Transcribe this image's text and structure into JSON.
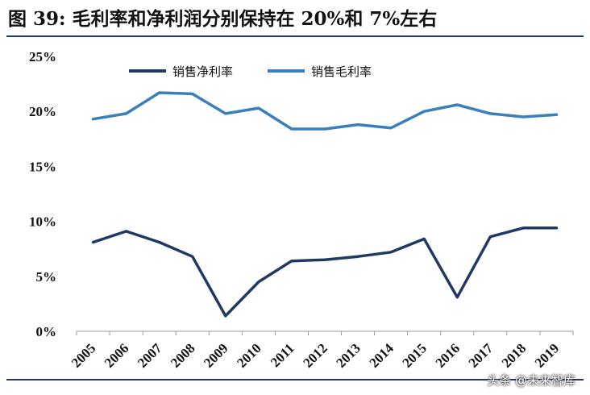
{
  "title": "图 39: 毛利率和净利润分别保持在 20%和 7%左右",
  "watermark": "头条 @未来智库",
  "colors": {
    "net_margin": "#1f3864",
    "gross_margin": "#3a7ebd",
    "title_rule": "#1f3864"
  },
  "chart_data": {
    "type": "line",
    "title": "图 39: 毛利率和净利润分别保持在 20%和 7%左右",
    "xlabel": "",
    "ylabel": "",
    "x": [
      "2005",
      "2006",
      "2007",
      "2008",
      "2009",
      "2010",
      "2011",
      "2012",
      "2013",
      "2014",
      "2015",
      "2016",
      "2017",
      "2018",
      "2019"
    ],
    "ylim": [
      0,
      25
    ],
    "yticks": [
      "0%",
      "5%",
      "10%",
      "15%",
      "20%",
      "25%"
    ],
    "grid": false,
    "legend_position": "top",
    "series": [
      {
        "name": "销售净利率",
        "values": [
          8.1,
          9.1,
          8.1,
          6.8,
          1.4,
          4.5,
          6.4,
          6.5,
          6.8,
          7.2,
          8.4,
          3.1,
          8.6,
          9.4,
          9.4
        ]
      },
      {
        "name": "销售毛利率",
        "values": [
          19.3,
          19.8,
          21.7,
          21.6,
          19.8,
          20.3,
          18.4,
          18.4,
          18.8,
          18.5,
          20.0,
          20.6,
          19.8,
          19.5,
          19.7
        ]
      }
    ]
  }
}
